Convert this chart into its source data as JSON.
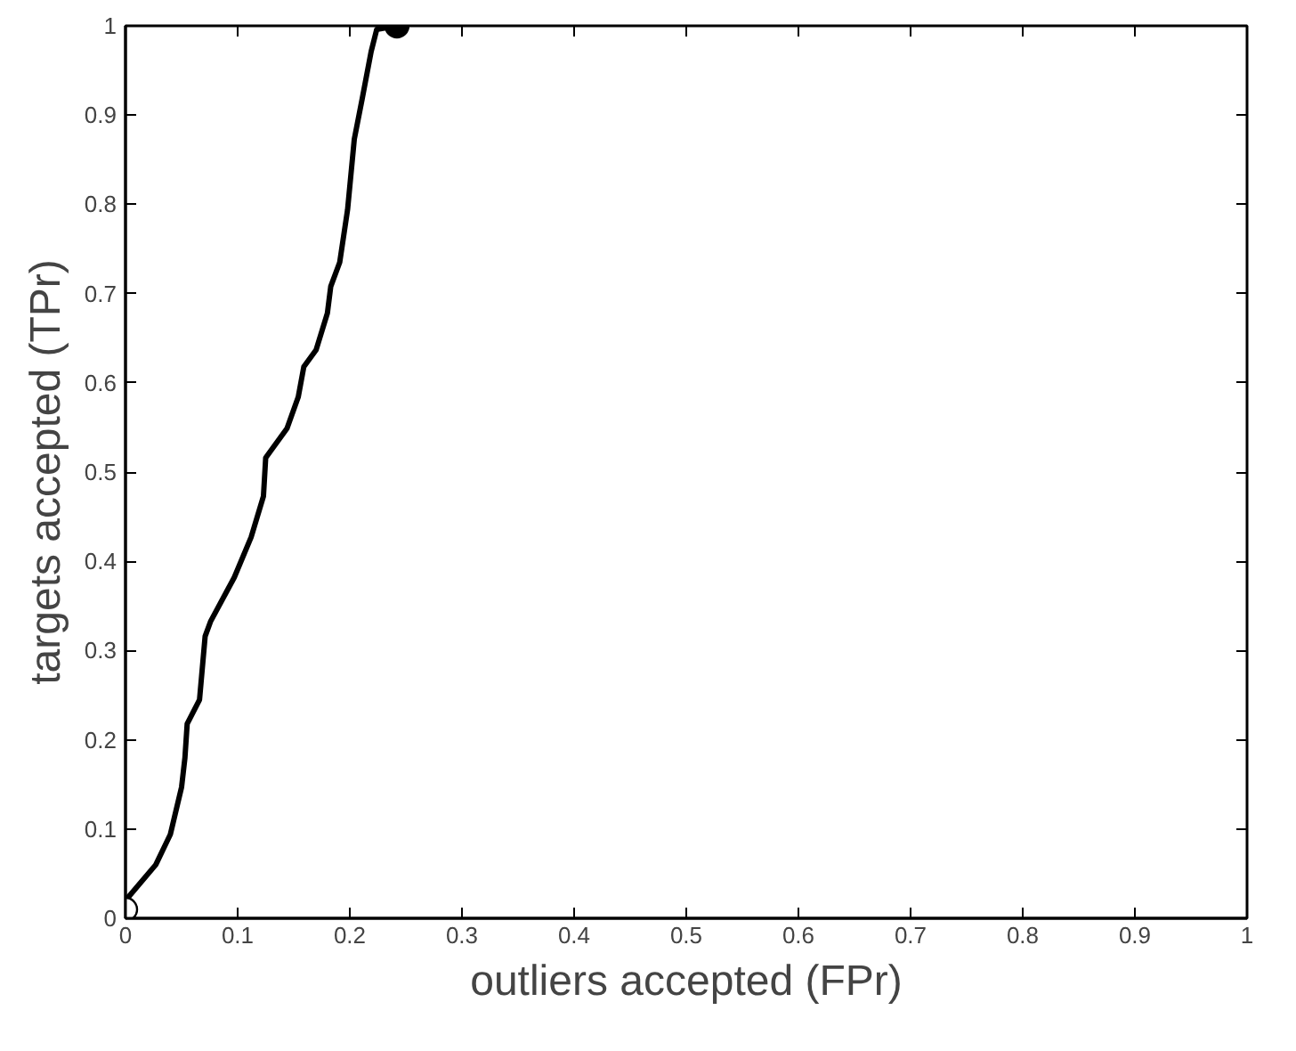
{
  "chart_data": {
    "type": "line",
    "xlabel": "outliers accepted (FPr)",
    "ylabel": "targets accepted (TPr)",
    "xlim": [
      0,
      1
    ],
    "ylim": [
      0,
      1
    ],
    "xticks": [
      0,
      0.1,
      0.2,
      0.3,
      0.4,
      0.5,
      0.6,
      0.7,
      0.8,
      0.9,
      1
    ],
    "yticks": [
      0,
      0.1,
      0.2,
      0.3,
      0.4,
      0.5,
      0.6,
      0.7,
      0.8,
      0.9,
      1
    ],
    "grid": false,
    "line_style": "solid",
    "series": [
      {
        "color": "#000000",
        "x": [
          0,
          0.027,
          0.04,
          0.05,
          0.053,
          0.055,
          0.066,
          0.071,
          0.076,
          0.097,
          0.112,
          0.123,
          0.125,
          0.144,
          0.154,
          0.159,
          0.17,
          0.18,
          0.183,
          0.191,
          0.198,
          0.204,
          0.211,
          0.219,
          0.224,
          0.242
        ],
        "values": [
          0.02,
          0.06,
          0.094,
          0.147,
          0.18,
          0.218,
          0.245,
          0.316,
          0.333,
          0.382,
          0.427,
          0.473,
          0.516,
          0.549,
          0.584,
          0.618,
          0.637,
          0.678,
          0.708,
          0.735,
          0.794,
          0.873,
          0.918,
          0.971,
          0.996,
          1.0
        ]
      },
      {
        "type": "scatter",
        "marker": "circle",
        "color": "#ffffff",
        "x": [
          0
        ],
        "values": [
          0.01
        ]
      },
      {
        "type": "scatter",
        "marker": "circle",
        "color": "#000000",
        "x": [
          0.242
        ],
        "values": [
          1.0
        ]
      }
    ]
  }
}
